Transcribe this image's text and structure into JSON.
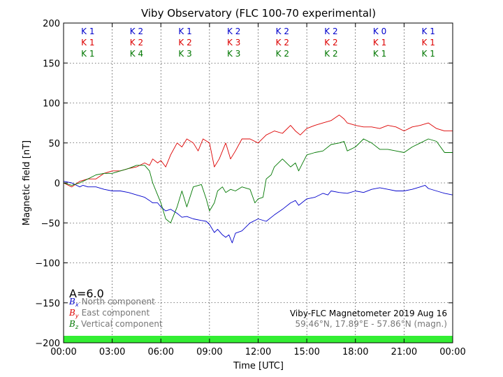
{
  "chart_data": {
    "type": "line",
    "title": "Viby Observatory (FLC 100-70 experimental)",
    "xlabel": "Time [UTC]",
    "ylabel": "Magnetic field [nT]",
    "xlim": [
      0,
      24
    ],
    "ylim": [
      -200,
      200
    ],
    "x_ticks": [
      0,
      3,
      6,
      9,
      12,
      15,
      18,
      21,
      24
    ],
    "x_tick_labels": [
      "00:00",
      "03:00",
      "06:00",
      "09:00",
      "12:00",
      "15:00",
      "18:00",
      "21:00",
      "00:00"
    ],
    "y_ticks": [
      200,
      150,
      100,
      50,
      0,
      -50,
      -100,
      -150,
      -200
    ],
    "y_tick_labels": [
      "200",
      "150",
      "100",
      "50",
      "0",
      "−50",
      "−100",
      "−150",
      "−200"
    ],
    "grid": true,
    "k_index": {
      "x_centers": [
        1.5,
        4.5,
        7.5,
        10.5,
        13.5,
        16.5,
        19.5,
        22.5
      ],
      "rows": [
        {
          "color": "#0000cc",
          "labels": [
            "K 1",
            "K 2",
            "K 1",
            "K 2",
            "K 2",
            "K 2",
            "K 0",
            "K 1"
          ]
        },
        {
          "color": "#dd0000",
          "labels": [
            "K 1",
            "K 2",
            "K 2",
            "K 3",
            "K 2",
            "K 2",
            "K 1",
            "K 1"
          ]
        },
        {
          "color": "#007700",
          "labels": [
            "K 1",
            "K 4",
            "K 3",
            "K 3",
            "K 2",
            "K 2",
            "K 1",
            "K 1"
          ]
        }
      ]
    },
    "a_index": "A=6.0",
    "legend": {
      "position": "bottom-left",
      "entries": [
        {
          "symbol": "B",
          "sub": "x",
          "text": "North component",
          "color": "#0000cc"
        },
        {
          "symbol": "B",
          "sub": "y",
          "text": "East component",
          "color": "#dd0000"
        },
        {
          "symbol": "B",
          "sub": "z",
          "text": "Vertical component",
          "color": "#007700"
        }
      ]
    },
    "info_line1": "Viby-FLC Magnetometer 2019 Aug 16",
    "info_line2": "59.46°N, 17.89°E - 57.86°N (magn.)",
    "status_bar_color": "#33ee33",
    "series": [
      {
        "name": "North component",
        "color": "#0000cc",
        "x": [
          0,
          0.5,
          1,
          1.2,
          1.5,
          2,
          2.5,
          3,
          3.5,
          4,
          4.5,
          5,
          5.3,
          5.5,
          5.8,
          6,
          6.3,
          6.6,
          7,
          7.3,
          7.6,
          8,
          8.5,
          8.8,
          9,
          9.3,
          9.5,
          9.8,
          10,
          10.2,
          10.4,
          10.6,
          11,
          11.5,
          12,
          12.5,
          13,
          13.5,
          14,
          14.3,
          14.5,
          15,
          15.5,
          16,
          16.3,
          16.5,
          17,
          17.5,
          18,
          18.5,
          19,
          19.5,
          20,
          20.5,
          21,
          21.5,
          22,
          22.3,
          22.5,
          23,
          23.5,
          24
        ],
        "y": [
          2,
          0,
          -5,
          -3,
          -5,
          -5,
          -8,
          -10,
          -10,
          -12,
          -15,
          -18,
          -22,
          -25,
          -25,
          -30,
          -35,
          -33,
          -38,
          -43,
          -42,
          -45,
          -47,
          -48,
          -52,
          -62,
          -58,
          -65,
          -68,
          -65,
          -75,
          -63,
          -60,
          -50,
          -45,
          -48,
          -40,
          -33,
          -25,
          -22,
          -28,
          -20,
          -18,
          -13,
          -15,
          -10,
          -12,
          -13,
          -10,
          -12,
          -8,
          -6,
          -8,
          -10,
          -10,
          -8,
          -5,
          -3,
          -7,
          -10,
          -13,
          -15
        ]
      },
      {
        "name": "East component",
        "color": "#dd0000",
        "x": [
          0,
          0.5,
          1,
          1.5,
          2,
          2.5,
          3,
          3.5,
          4,
          4.5,
          5,
          5.3,
          5.5,
          5.8,
          6,
          6.3,
          6.6,
          7,
          7.3,
          7.6,
          8,
          8.3,
          8.6,
          9,
          9.3,
          9.6,
          10,
          10.3,
          10.6,
          11,
          11.5,
          12,
          12.5,
          13,
          13.5,
          14,
          14.3,
          14.6,
          15,
          15.5,
          16,
          16.5,
          17,
          17.3,
          17.5,
          18,
          18.5,
          19,
          19.5,
          20,
          20.5,
          21,
          21.5,
          22,
          22.5,
          23,
          23.5,
          24
        ],
        "y": [
          0,
          -5,
          2,
          5,
          5,
          12,
          15,
          15,
          18,
          20,
          25,
          22,
          30,
          25,
          28,
          20,
          35,
          50,
          45,
          55,
          50,
          40,
          55,
          50,
          20,
          30,
          50,
          30,
          40,
          55,
          55,
          50,
          60,
          65,
          62,
          72,
          65,
          60,
          68,
          72,
          75,
          78,
          85,
          80,
          75,
          72,
          70,
          70,
          68,
          72,
          70,
          65,
          70,
          72,
          75,
          68,
          65,
          65
        ]
      },
      {
        "name": "Vertical component",
        "color": "#007700",
        "x": [
          0,
          0.5,
          1,
          1.5,
          2,
          2.5,
          3,
          3.5,
          4,
          4.5,
          5,
          5.3,
          5.5,
          5.8,
          6,
          6.3,
          6.6,
          7,
          7.3,
          7.6,
          8,
          8.5,
          8.8,
          9,
          9.3,
          9.5,
          9.8,
          10,
          10.3,
          10.6,
          11,
          11.5,
          11.8,
          12,
          12.3,
          12.5,
          12.8,
          13,
          13.5,
          14,
          14.3,
          14.5,
          15,
          15.5,
          16,
          16.5,
          17,
          17.3,
          17.5,
          18,
          18.5,
          19,
          19.5,
          20,
          20.5,
          21,
          21.5,
          22,
          22.5,
          23,
          23.5,
          24
        ],
        "y": [
          0,
          -3,
          0,
          5,
          10,
          12,
          12,
          15,
          18,
          22,
          22,
          15,
          0,
          -15,
          -25,
          -45,
          -50,
          -30,
          -10,
          -30,
          -5,
          -2,
          -20,
          -35,
          -25,
          -10,
          -5,
          -12,
          -8,
          -10,
          -5,
          -8,
          -25,
          -20,
          -18,
          5,
          10,
          20,
          30,
          20,
          25,
          15,
          35,
          38,
          40,
          48,
          50,
          52,
          40,
          45,
          55,
          50,
          42,
          42,
          40,
          38,
          45,
          50,
          55,
          52,
          38,
          38
        ]
      }
    ]
  }
}
